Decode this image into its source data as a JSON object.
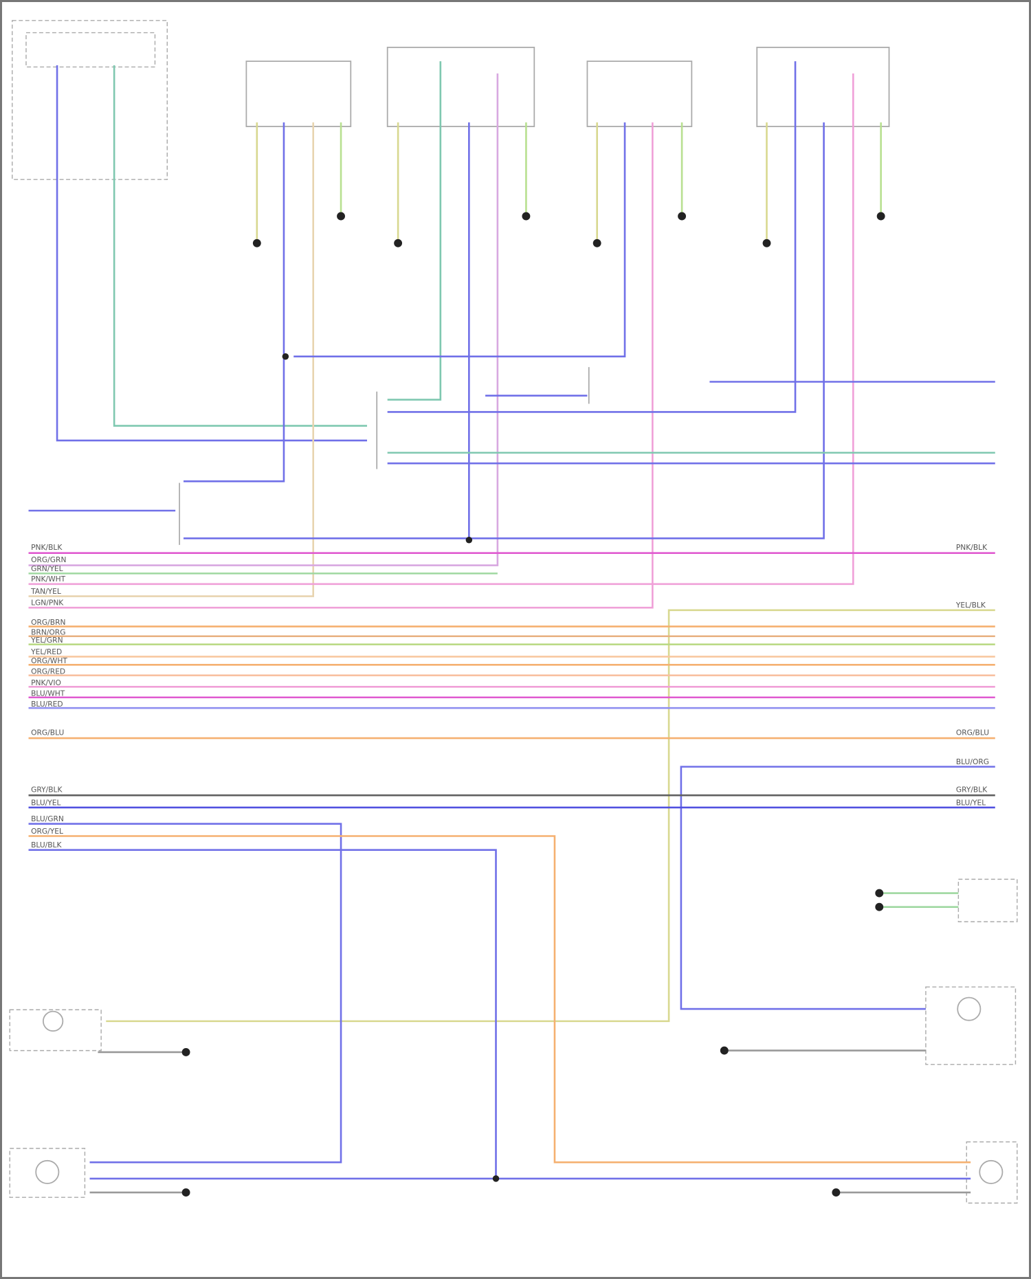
{
  "diagram": {
    "colors": {
      "magenta": "#e05ad0",
      "pink": "#f0a0d8",
      "mauve": "#d8a8e0",
      "green": "#9fd8a0",
      "teal": "#7fc8b0",
      "beige": "#e8d4b0",
      "yellow": "#d8d890",
      "orange": "#f5b070",
      "peach": "#f8c8a0",
      "blue": "#7070e8",
      "lightblue": "#a8a8f0",
      "gray": "#606060",
      "lime": "#b8e090"
    },
    "wire_labels": {
      "w678": "PNK/BLK",
      "w693": "ORG/GRN",
      "w703": "GRN/YEL",
      "w716": "PNK/WHT",
      "w731": "TAN/YEL",
      "w745": "LGN/PNK",
      "w755": "YEL/BLK",
      "w770": "ORG/BRN",
      "w780": "BRN/ORG",
      "w790": "YEL/GRN",
      "w805": "YEL/RED",
      "w815": "ORG/WHT",
      "w828": "ORG/RED",
      "w840": "PNK/VIO",
      "w855": "BLU/WHT",
      "w868": "BLU/RED",
      "w905": "ORG/BLU",
      "w940": "BLU/ORG",
      "w975": "GRY/BLK",
      "w990": "BLU/YEL",
      "w1010": "BLU/GRN",
      "w1025": "ORG/YEL",
      "w1042": "BLU/BLK"
    }
  }
}
